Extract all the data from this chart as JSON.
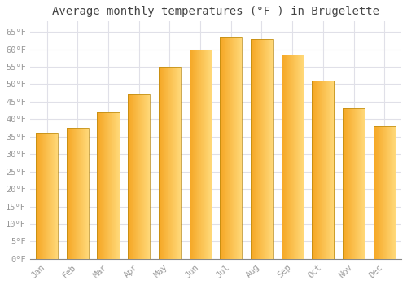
{
  "title": "Average monthly temperatures (°F ) in Brugelette",
  "months": [
    "Jan",
    "Feb",
    "Mar",
    "Apr",
    "May",
    "Jun",
    "Jul",
    "Aug",
    "Sep",
    "Oct",
    "Nov",
    "Dec"
  ],
  "values": [
    36,
    37.5,
    42,
    47,
    55,
    60,
    63.5,
    63,
    58.5,
    51,
    43,
    38
  ],
  "bar_color_left": "#F5A623",
  "bar_color_right": "#FFD878",
  "bar_edge_color": "#B8860B",
  "background_color": "#FFFFFF",
  "grid_color": "#E0E0E8",
  "title_fontsize": 10,
  "tick_label_color": "#999999",
  "ytick_step": 5,
  "ymin": 0,
  "ymax": 68
}
